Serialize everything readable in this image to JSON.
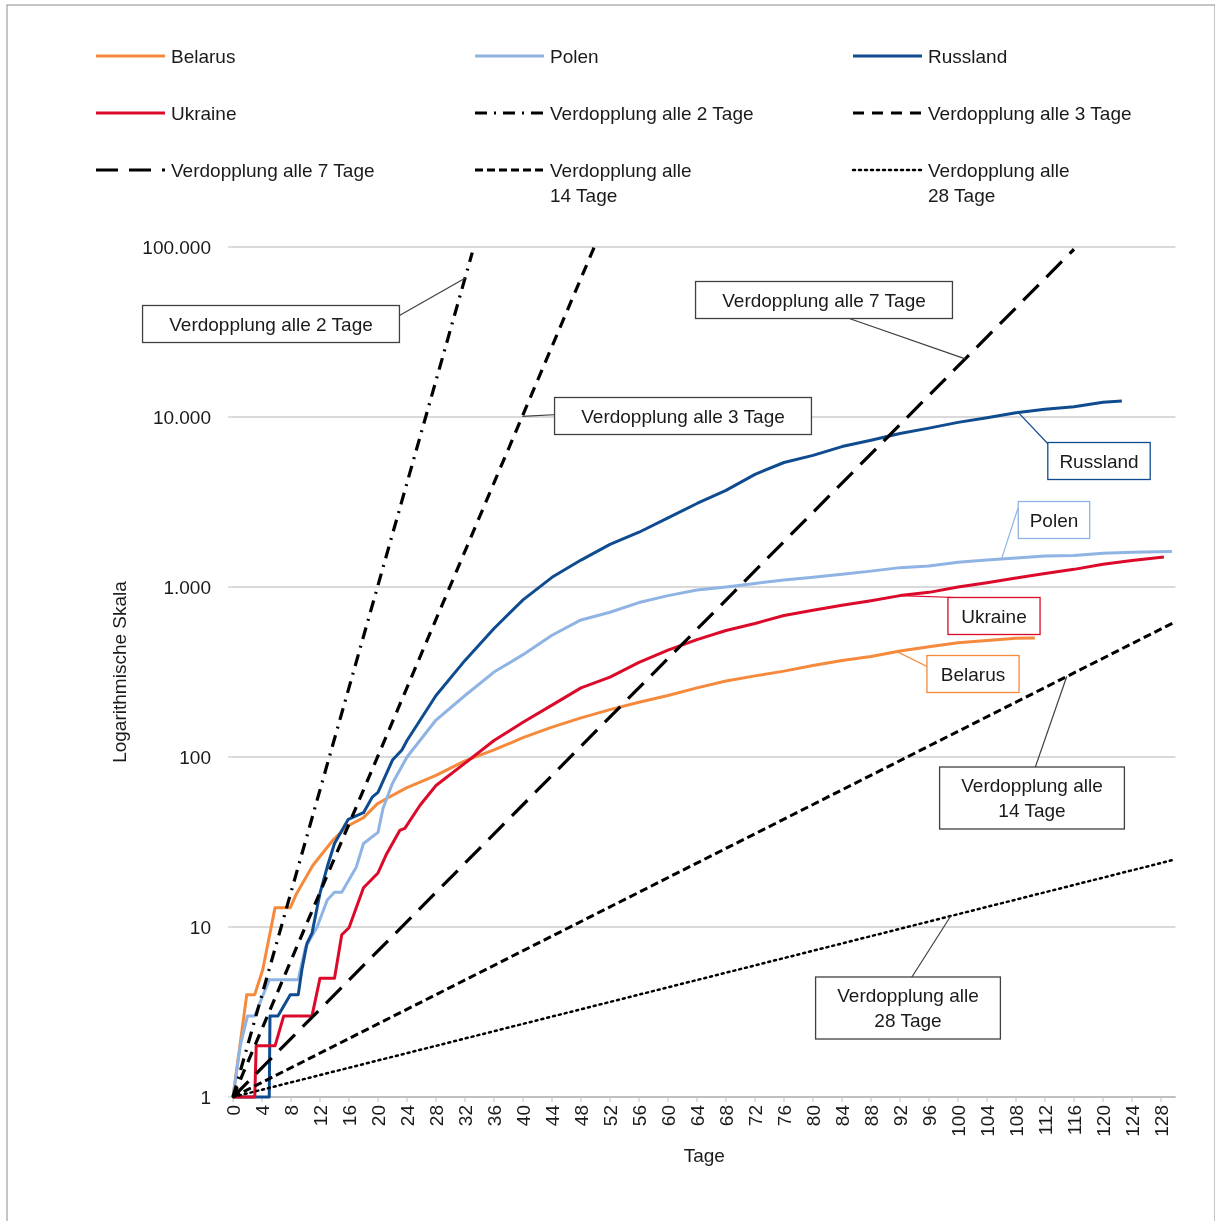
{
  "chart_data": {
    "type": "line",
    "xlabel": "Tage",
    "ylabel": "Logarithmische Skala",
    "log": "y",
    "grid": "y",
    "legend": "top",
    "xlim": [
      0,
      130
    ],
    "xticks": [
      0,
      4,
      8,
      12,
      16,
      20,
      24,
      28,
      32,
      36,
      40,
      44,
      48,
      52,
      56,
      60,
      64,
      68,
      72,
      76,
      80,
      84,
      88,
      92,
      96,
      100,
      104,
      108,
      112,
      116,
      120,
      124,
      128
    ],
    "ylim": [
      1,
      100000
    ],
    "yticks": [
      1,
      10,
      100,
      {
        "value": 1000,
        "label": "1.000"
      },
      {
        "value": 10000,
        "label": "10.000"
      },
      {
        "value": 100000,
        "label": "100.000"
      }
    ],
    "series": [
      {
        "name": "Belarus",
        "color": "#f58a3c",
        "line_style": "solid",
        "x": [
          0,
          1.9,
          3,
          4.1,
          5.8,
          7.9,
          8.8,
          11,
          13.8,
          15.7,
          18,
          19.9,
          21.2,
          24,
          28,
          32,
          36,
          40,
          44,
          48,
          52,
          56,
          60,
          64,
          68,
          72,
          76,
          80,
          84,
          88,
          92,
          96,
          100,
          104,
          108,
          110.6
        ],
        "values": [
          1,
          4,
          4,
          5.6,
          13,
          13,
          15.8,
          23,
          32.5,
          39,
          44,
          53,
          57,
          66,
          78,
          95,
          110,
          130,
          150,
          170,
          190,
          210,
          230,
          255,
          280,
          300,
          320,
          345,
          370,
          390,
          420,
          445,
          470,
          485,
          500,
          501
        ]
      },
      {
        "name": "Polen",
        "color": "#8fb4e3",
        "line_style": "solid",
        "x": [
          0,
          1,
          2,
          3,
          5,
          9,
          10,
          11.6,
          13,
          14,
          15,
          17,
          18,
          20,
          20.7,
          22,
          24,
          28,
          32,
          36,
          40,
          44,
          48,
          52,
          56,
          60,
          64,
          68,
          72,
          76,
          80,
          84,
          88,
          92,
          96,
          100,
          104,
          108,
          112,
          116,
          120,
          124,
          129.5
        ],
        "values": [
          1,
          2,
          3,
          3,
          4.9,
          4.9,
          7.6,
          10,
          14.4,
          16,
          16,
          22.5,
          31,
          36,
          50,
          70,
          100,
          165,
          230,
          316,
          400,
          520,
          640,
          710,
          810,
          890,
          960,
          1000,
          1050,
          1100,
          1140,
          1190,
          1240,
          1300,
          1330,
          1400,
          1440,
          1480,
          1520,
          1530,
          1580,
          1600,
          1620
        ]
      },
      {
        "name": "Russland",
        "color": "#0f4c8f",
        "line_style": "solid",
        "x": [
          0,
          5,
          5.1,
          6.2,
          7.9,
          9,
          9.5,
          10.2,
          10.9,
          12,
          13,
          14,
          15.9,
          18,
          19.2,
          20,
          22,
          23.3,
          24,
          28,
          32,
          36,
          40,
          44,
          48,
          52,
          56,
          60,
          64,
          68,
          72,
          76,
          80,
          84,
          88,
          92,
          96,
          100,
          104,
          108,
          112,
          116,
          120,
          122.6
        ],
        "values": [
          1,
          1,
          3,
          3,
          4,
          4,
          5.6,
          8,
          9.2,
          15.8,
          22.6,
          31,
          43,
          47,
          58,
          62,
          96,
          110,
          125,
          230,
          370,
          570,
          840,
          1140,
          1440,
          1780,
          2100,
          2550,
          3100,
          3700,
          4600,
          5400,
          5950,
          6700,
          7300,
          8000,
          8600,
          9300,
          9900,
          10600,
          11100,
          11500,
          12200,
          12400
        ]
      },
      {
        "name": "Ukraine",
        "color": "#dc0a2a",
        "line_style": "solid",
        "x": [
          0,
          3,
          3.2,
          5.8,
          7,
          10.9,
          12,
          14,
          15,
          16,
          18,
          20,
          21.2,
          23,
          23.7,
          25.8,
          28,
          32,
          36,
          40,
          44,
          48,
          52,
          56,
          60,
          64,
          68,
          72,
          76,
          80,
          84,
          88,
          92,
          96,
          100,
          104,
          108,
          112,
          116,
          120,
          124,
          128.4
        ],
        "values": [
          1,
          1,
          2,
          2,
          3,
          3,
          5,
          5,
          9,
          9.9,
          17,
          20.8,
          27,
          37,
          38,
          52,
          68,
          92,
          125,
          160,
          202,
          255,
          295,
          360,
          425,
          490,
          555,
          610,
          680,
          730,
          780,
          830,
          890,
          930,
          1000,
          1060,
          1130,
          1200,
          1270,
          1360,
          1430,
          1500
        ]
      },
      {
        "name": "Verdopplung alle 2 Tage",
        "color": "#000000",
        "line_style": "dashdot",
        "x": [
          0,
          33
        ],
        "values": [
          1,
          92682
        ]
      },
      {
        "name": "Verdopplung alle 3 Tage",
        "color": "#000000",
        "line_style": "dashed",
        "x": [
          0,
          49.8
        ],
        "values": [
          1,
          99334
        ]
      },
      {
        "name": "Verdopplung alle 7 Tage",
        "color": "#000000",
        "line_style": "longdash",
        "x": [
          0,
          116
        ],
        "values": [
          1,
          97000
        ]
      },
      {
        "name": "Verdopplung alle 14 Tage",
        "color": "#000000",
        "line_style": "shortdash",
        "x": [
          0,
          130
        ],
        "values": [
          1,
          625
        ]
      },
      {
        "name": "Verdopplung alle 28 Tage",
        "color": "#000000",
        "line_style": "dotted",
        "x": [
          0,
          130
        ],
        "values": [
          1,
          25
        ]
      }
    ]
  }
}
